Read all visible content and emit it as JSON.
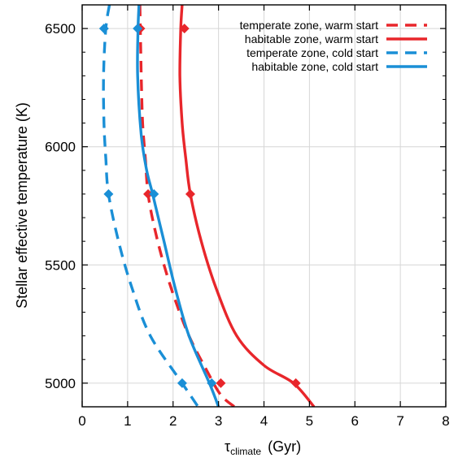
{
  "chart_data": {
    "type": "line",
    "title": "",
    "xlabel": {
      "symbol": "τ",
      "subscript": "climate",
      "unit": "(Gyr)"
    },
    "ylabel": "Stellar effective temperature (K)",
    "xlim": [
      0,
      8
    ],
    "ylim": [
      4900,
      6600
    ],
    "x_ticks": [
      "0",
      "1",
      "2",
      "3",
      "4",
      "5",
      "6",
      "7",
      "8"
    ],
    "y_ticks": [
      "5000",
      "5500",
      "6000",
      "6500"
    ],
    "grid": true,
    "legend_position": "top-right",
    "colors": {
      "warm": "#e8262b",
      "cold": "#1a8fd6"
    },
    "series": [
      {
        "name": "temperate zone, warm start",
        "color": "#e8262b",
        "dash": "dashed",
        "curve": [
          {
            "x": 1.27,
            "y": 6600
          },
          {
            "x": 1.28,
            "y": 6500
          },
          {
            "x": 1.3,
            "y": 6300
          },
          {
            "x": 1.33,
            "y": 6100
          },
          {
            "x": 1.39,
            "y": 5950
          },
          {
            "x": 1.45,
            "y": 5800
          },
          {
            "x": 1.6,
            "y": 5650
          },
          {
            "x": 1.8,
            "y": 5500
          },
          {
            "x": 2.05,
            "y": 5350
          },
          {
            "x": 2.35,
            "y": 5200
          },
          {
            "x": 2.75,
            "y": 5050
          },
          {
            "x": 3.05,
            "y": 4950
          },
          {
            "x": 3.35,
            "y": 4900
          }
        ],
        "markers": [
          {
            "x": 1.28,
            "y": 6500
          },
          {
            "x": 1.45,
            "y": 5800
          },
          {
            "x": 3.05,
            "y": 5000
          }
        ]
      },
      {
        "name": "habitable zone, warm start",
        "color": "#e8262b",
        "dash": "solid",
        "curve": [
          {
            "x": 2.2,
            "y": 6600
          },
          {
            "x": 2.17,
            "y": 6500
          },
          {
            "x": 2.15,
            "y": 6300
          },
          {
            "x": 2.2,
            "y": 6100
          },
          {
            "x": 2.28,
            "y": 5950
          },
          {
            "x": 2.38,
            "y": 5800
          },
          {
            "x": 2.62,
            "y": 5600
          },
          {
            "x": 2.95,
            "y": 5400
          },
          {
            "x": 3.4,
            "y": 5200
          },
          {
            "x": 4.0,
            "y": 5075
          },
          {
            "x": 4.65,
            "y": 5000
          },
          {
            "x": 5.1,
            "y": 4900
          }
        ],
        "markers": [
          {
            "x": 2.25,
            "y": 6500
          },
          {
            "x": 2.38,
            "y": 5800
          },
          {
            "x": 4.7,
            "y": 5000
          }
        ]
      },
      {
        "name": "temperate zone, cold start",
        "color": "#1a8fd6",
        "dash": "dashed",
        "curve": [
          {
            "x": 0.6,
            "y": 6600
          },
          {
            "x": 0.52,
            "y": 6500
          },
          {
            "x": 0.47,
            "y": 6300
          },
          {
            "x": 0.48,
            "y": 6100
          },
          {
            "x": 0.52,
            "y": 5950
          },
          {
            "x": 0.58,
            "y": 5800
          },
          {
            "x": 0.8,
            "y": 5600
          },
          {
            "x": 1.1,
            "y": 5400
          },
          {
            "x": 1.5,
            "y": 5200
          },
          {
            "x": 2.2,
            "y": 5000
          },
          {
            "x": 2.55,
            "y": 4900
          }
        ],
        "markers": [
          {
            "x": 0.48,
            "y": 6500
          },
          {
            "x": 0.58,
            "y": 5800
          },
          {
            "x": 2.2,
            "y": 5000
          }
        ]
      },
      {
        "name": "habitable zone, cold start",
        "color": "#1a8fd6",
        "dash": "solid",
        "curve": [
          {
            "x": 1.25,
            "y": 6600
          },
          {
            "x": 1.23,
            "y": 6500
          },
          {
            "x": 1.22,
            "y": 6300
          },
          {
            "x": 1.3,
            "y": 6050
          },
          {
            "x": 1.42,
            "y": 5900
          },
          {
            "x": 1.55,
            "y": 5800
          },
          {
            "x": 1.8,
            "y": 5600
          },
          {
            "x": 2.05,
            "y": 5400
          },
          {
            "x": 2.35,
            "y": 5200
          },
          {
            "x": 2.8,
            "y": 5000
          },
          {
            "x": 3.0,
            "y": 4900
          }
        ],
        "markers": [
          {
            "x": 1.22,
            "y": 6500
          },
          {
            "x": 1.58,
            "y": 5800
          },
          {
            "x": 2.85,
            "y": 5000
          }
        ]
      }
    ]
  }
}
